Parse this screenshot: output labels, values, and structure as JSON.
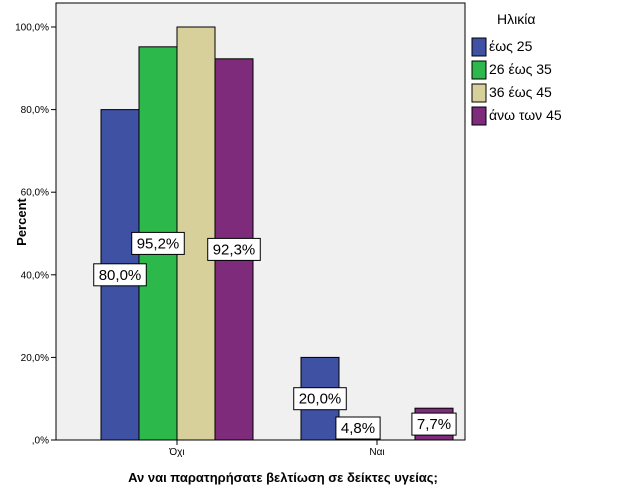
{
  "chart_data": {
    "type": "bar",
    "categories": [
      "Όχι",
      "Ναι"
    ],
    "series": [
      {
        "name": "έως 25",
        "values": [
          80.0,
          20.0
        ],
        "labels": [
          "80,0%",
          "20,0%"
        ],
        "color": "#3f51a3"
      },
      {
        "name": "26 έως 35",
        "values": [
          95.2,
          4.8
        ],
        "labels": [
          "95,2%",
          "4,8%"
        ],
        "color": "#2db84b"
      },
      {
        "name": "36 έως 45",
        "values": [
          100.0,
          0.0
        ],
        "labels": [
          "",
          ""
        ],
        "color": "#d8d09a"
      },
      {
        "name": "άνω των 45",
        "values": [
          92.3,
          7.7
        ],
        "labels": [
          "92,3%",
          "7,7%"
        ],
        "color": "#7d2b7a"
      }
    ],
    "ylim": [
      0,
      100
    ],
    "yticks": [
      0,
      20,
      40,
      60,
      80,
      100
    ],
    "ytick_labels": [
      ",0%",
      "20,0%",
      "40,0%",
      "60,0%",
      "80,0%",
      "100,0%"
    ],
    "xlabel": "Αν ναι παρατηρήσατε βελτίωση σε δείκτες υγείας;",
    "ylabel": "Percent",
    "legend_title": "Ηλικία",
    "legend_position": "right",
    "grid": false,
    "plot_background": "#f0f0f0"
  }
}
